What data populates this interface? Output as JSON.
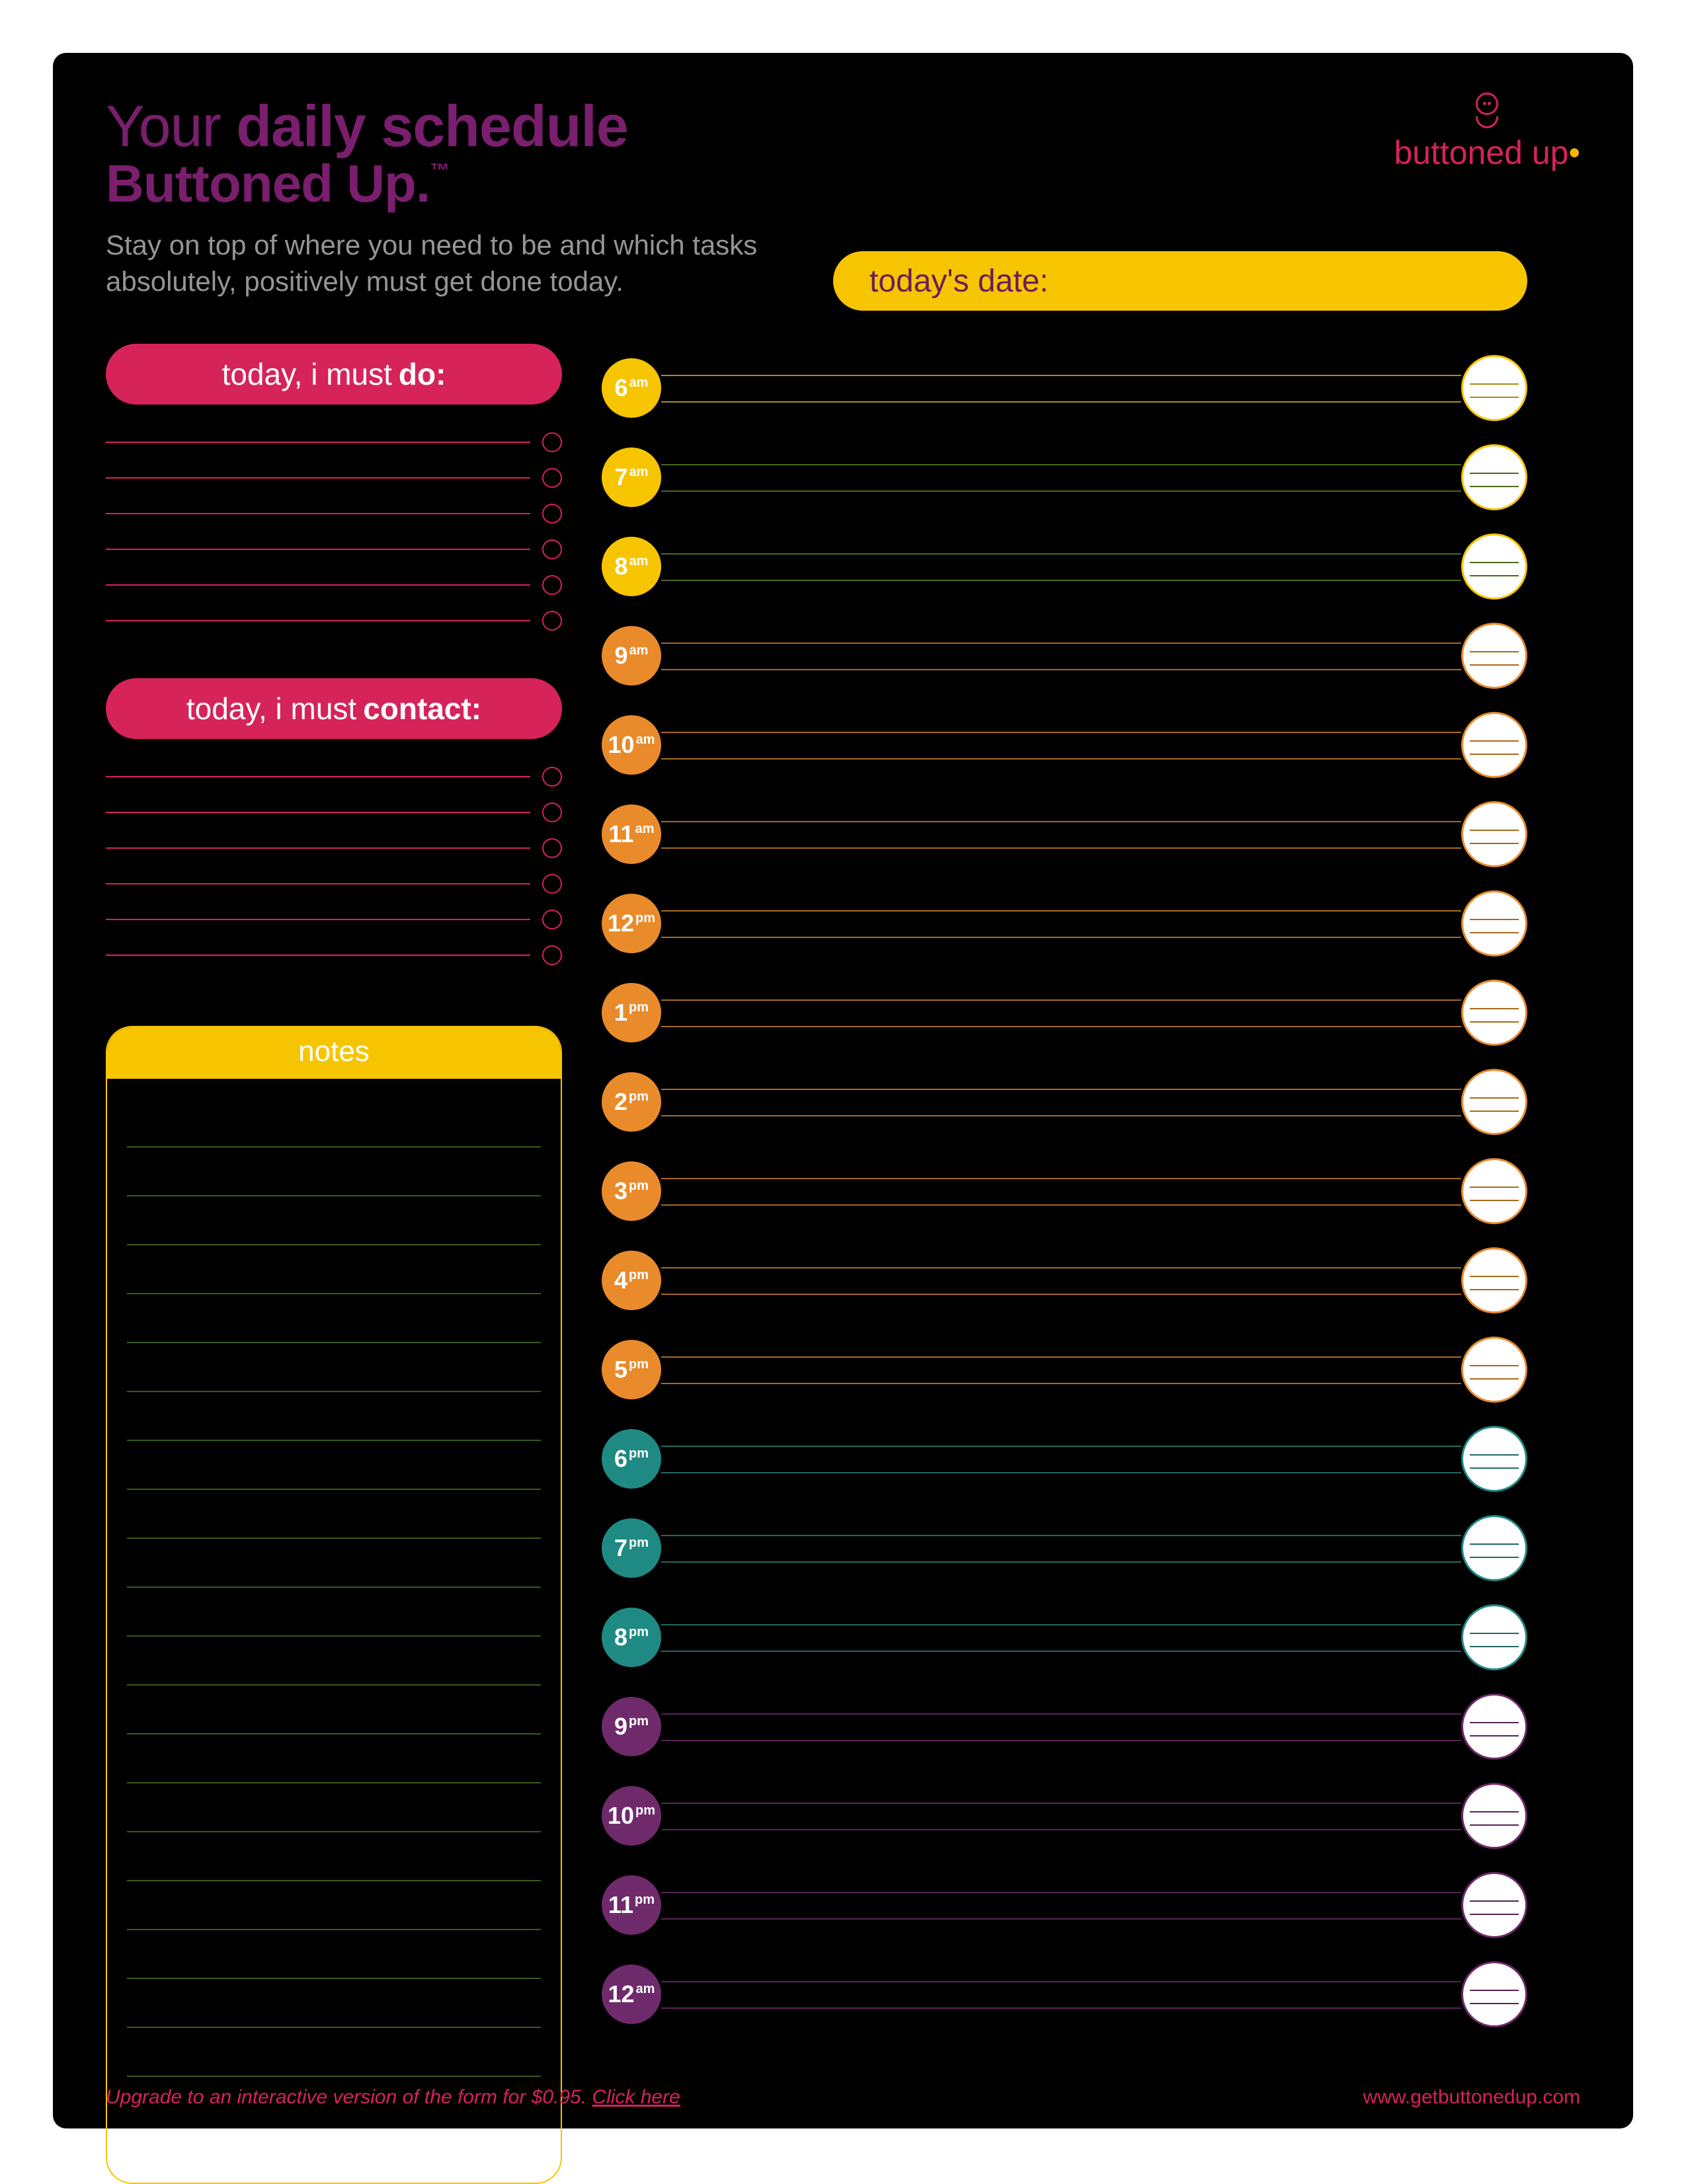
{
  "colors": {
    "bg": "#000000",
    "purple": "#7a1e6e",
    "pink": "#d6235a",
    "yellow": "#f7c500",
    "orange": "#e98b2a",
    "teal": "#1f8a84",
    "plum": "#6f2a6c",
    "grey": "#959595",
    "white": "#ffffff",
    "notesLine": "#3a5a1a"
  },
  "header": {
    "title_prefix": "Your ",
    "title_bold": "daily schedule",
    "subtitle_brand": "Buttoned Up.",
    "tm": "™",
    "tagline": "Stay on top of where you need to be and which tasks absolutely, positively must get done today."
  },
  "logo": {
    "text": "buttoned up"
  },
  "date_label": "today's date:",
  "do_header_prefix": "today, i must ",
  "do_header_bold": "do:",
  "contact_header_prefix": "today, i must ",
  "contact_header_bold": "contact:",
  "do_lines": 6,
  "contact_lines": 6,
  "notes_label": "notes",
  "notes_lines": 21,
  "timeline": [
    {
      "hour": "6",
      "ampm": "am",
      "color": "#f7c500",
      "line": "#a88f1a",
      "endBorder": "#f7c500"
    },
    {
      "hour": "7",
      "ampm": "am",
      "color": "#f7c500",
      "line": "#4a6a1a",
      "endBorder": "#f7c500"
    },
    {
      "hour": "8",
      "ampm": "am",
      "color": "#f7c500",
      "line": "#4a6a1a",
      "endBorder": "#f7c500"
    },
    {
      "hour": "9",
      "ampm": "am",
      "color": "#e98b2a",
      "line": "#a86a1a",
      "endBorder": "#e98b2a"
    },
    {
      "hour": "10",
      "ampm": "am",
      "color": "#e98b2a",
      "line": "#a86a1a",
      "endBorder": "#e98b2a"
    },
    {
      "hour": "11",
      "ampm": "am",
      "color": "#e98b2a",
      "line": "#a86a1a",
      "endBorder": "#e98b2a"
    },
    {
      "hour": "12",
      "ampm": "pm",
      "color": "#e98b2a",
      "line": "#a86a1a",
      "endBorder": "#e98b2a"
    },
    {
      "hour": "1",
      "ampm": "pm",
      "color": "#e98b2a",
      "line": "#a86a1a",
      "endBorder": "#e98b2a"
    },
    {
      "hour": "2",
      "ampm": "pm",
      "color": "#e98b2a",
      "line": "#a86a1a",
      "endBorder": "#e98b2a"
    },
    {
      "hour": "3",
      "ampm": "pm",
      "color": "#e98b2a",
      "line": "#a86a1a",
      "endBorder": "#e98b2a"
    },
    {
      "hour": "4",
      "ampm": "pm",
      "color": "#e98b2a",
      "line": "#a86a1a",
      "endBorder": "#e98b2a"
    },
    {
      "hour": "5",
      "ampm": "pm",
      "color": "#e98b2a",
      "line": "#a86a1a",
      "endBorder": "#e98b2a"
    },
    {
      "hour": "6",
      "ampm": "pm",
      "color": "#1f8a84",
      "line": "#1f6a64",
      "endBorder": "#1f8a84"
    },
    {
      "hour": "7",
      "ampm": "pm",
      "color": "#1f8a84",
      "line": "#1f6a64",
      "endBorder": "#1f8a84"
    },
    {
      "hour": "8",
      "ampm": "pm",
      "color": "#1f8a84",
      "line": "#1f6a64",
      "endBorder": "#1f8a84"
    },
    {
      "hour": "9",
      "ampm": "pm",
      "color": "#6f2a6c",
      "line": "#5a2258",
      "endBorder": "#6f2a6c"
    },
    {
      "hour": "10",
      "ampm": "pm",
      "color": "#6f2a6c",
      "line": "#5a2258",
      "endBorder": "#6f2a6c"
    },
    {
      "hour": "11",
      "ampm": "pm",
      "color": "#6f2a6c",
      "line": "#5a2258",
      "endBorder": "#6f2a6c"
    },
    {
      "hour": "12",
      "ampm": "am",
      "color": "#6f2a6c",
      "line": "#5a2258",
      "endBorder": "#6f2a6c"
    }
  ],
  "footer": {
    "upgrade_text": "Upgrade to an interactive version of the form for $0.95. ",
    "upgrade_link": "Click here",
    "site": "www.getbuttonedup.com"
  }
}
